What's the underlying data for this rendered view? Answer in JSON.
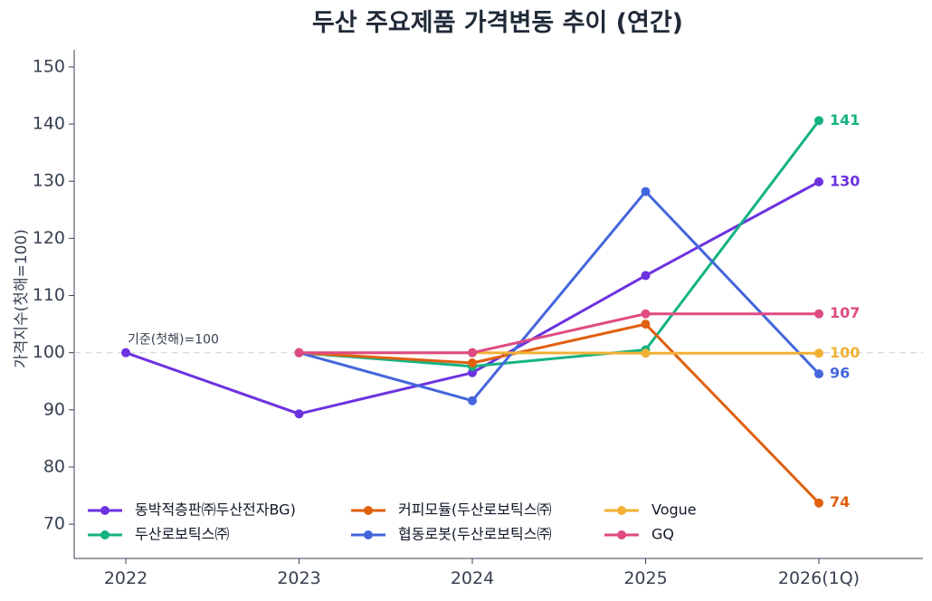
{
  "chart_data": {
    "type": "line",
    "title": "두산 주요제품 가격변동 추이 (연간)",
    "xlabel": "",
    "ylabel": "가격지수(첫해=100)",
    "ylim": [
      64,
      153
    ],
    "yticks": [
      70,
      80,
      90,
      100,
      110,
      120,
      130,
      140,
      150
    ],
    "categories": [
      "2022",
      "2023",
      "2024",
      "2025",
      "2026(1Q)"
    ],
    "grid": false,
    "legend_position": "bottom-left",
    "baseline": {
      "value": 100,
      "label": "기준(첫해)=100"
    },
    "series": [
      {
        "name": "동박적층판㈜두산전자BG)",
        "color": "#6d32e0",
        "values": [
          100,
          89.3,
          96.5,
          113.5,
          129.9
        ],
        "end_label": "130"
      },
      {
        "name": "두산로보틱스㈜",
        "color": "#14b283",
        "values": [
          null,
          100,
          97.6,
          100.5,
          140.6
        ],
        "end_label": "141"
      },
      {
        "name": "커피모듈(두산로보틱스㈜",
        "color": "#e0600f",
        "values": [
          null,
          100,
          98.2,
          105,
          73.7
        ],
        "end_label": "74"
      },
      {
        "name": "협동로봇(두산로보틱스㈜",
        "color": "#4466dd",
        "values": [
          null,
          100,
          91.6,
          128.2,
          96.3
        ],
        "end_label": "96"
      },
      {
        "name": "Vogue",
        "color": "#f2b134",
        "values": [
          null,
          100,
          100,
          99.9,
          99.9
        ],
        "end_label": "100"
      },
      {
        "name": "GQ",
        "color": "#df4a82",
        "values": [
          null,
          100,
          100,
          106.8,
          106.8
        ],
        "end_label": "107"
      }
    ]
  }
}
